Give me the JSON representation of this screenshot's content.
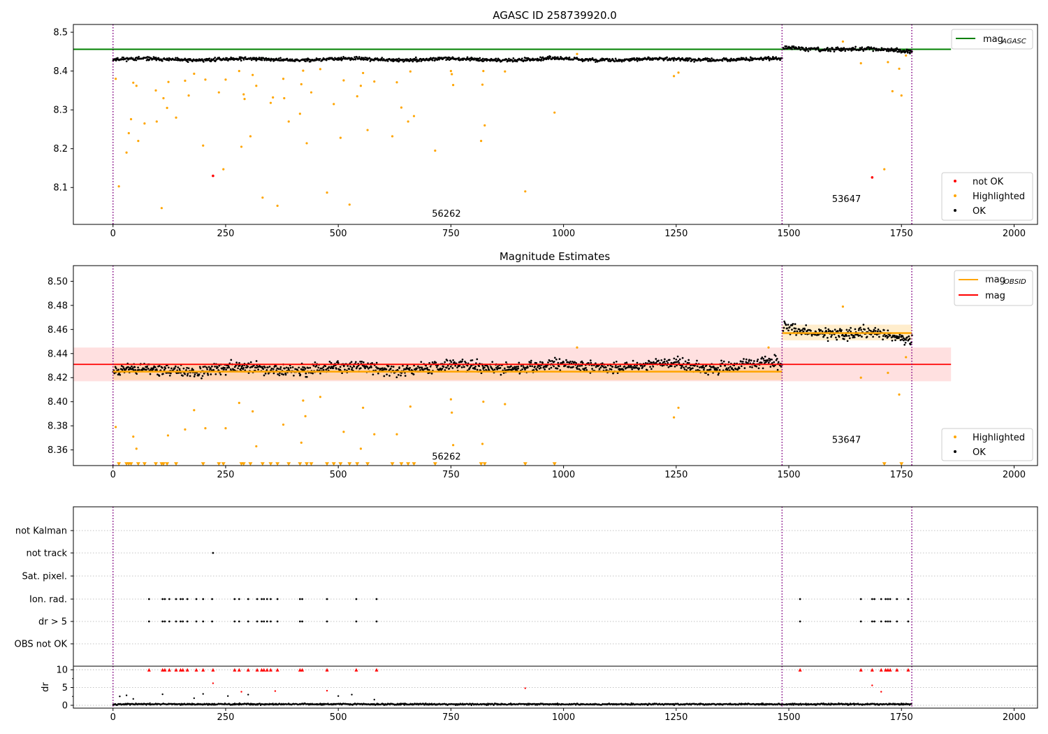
{
  "colors": {
    "ok": "#000000",
    "highlighted": "#FFA500",
    "not_ok": "#FF0000",
    "agasc": "#008000",
    "obsid": "#FFA500",
    "mag": "#FF0000",
    "obs_boundary": "#800080",
    "grid": "#b0b0b0"
  },
  "chart_data": [
    {
      "type": "scatter",
      "title": "AGASC ID 258739920.0",
      "xlim": [
        -88,
        2052
      ],
      "ylim": [
        8.005,
        8.52
      ],
      "x_ticks": [
        0,
        250,
        500,
        750,
        1000,
        1250,
        1500,
        1750,
        2000
      ],
      "x_tick_labels": [
        "0",
        "250",
        "500",
        "750",
        "1000",
        "1250",
        "1500",
        "1750",
        "2000"
      ],
      "y_ticks": [
        8.1,
        8.2,
        8.3,
        8.4,
        8.5
      ],
      "y_tick_labels": [
        "8.1",
        "8.2",
        "8.3",
        "8.4",
        "8.5"
      ],
      "obs_boundaries": [
        0,
        1485,
        1773
      ],
      "mag_agasc": 8.456,
      "mag_agasc_x_range": [
        -88,
        1860
      ],
      "obs_labels": [
        {
          "text": "56262",
          "x": 740,
          "y": 8.025
        },
        {
          "text": "53647",
          "x": 1628,
          "y": 8.063
        }
      ],
      "ok_segments": [
        {
          "x_range": [
            0,
            1485
          ],
          "level_start": 8.43,
          "level_end": 8.43,
          "spread": 0.006
        },
        {
          "x_range": [
            1488,
            1773
          ],
          "level_start": 8.46,
          "level_end": 8.452,
          "spread": 0.007
        }
      ],
      "series": [
        {
          "name": "not OK",
          "points": [
            [
              222,
              8.13
            ],
            [
              1685,
              8.126
            ]
          ]
        },
        {
          "name": "Highlighted",
          "points": [
            [
              6,
              8.38
            ],
            [
              13,
              8.103
            ],
            [
              30,
              8.19
            ],
            [
              35,
              8.24
            ],
            [
              40,
              8.276
            ],
            [
              45,
              8.37
            ],
            [
              52,
              8.362
            ],
            [
              56,
              8.22
            ],
            [
              70,
              8.265
            ],
            [
              95,
              8.35
            ],
            [
              97,
              8.27
            ],
            [
              108,
              8.047
            ],
            [
              112,
              8.33
            ],
            [
              120,
              8.305
            ],
            [
              123,
              8.372
            ],
            [
              140,
              8.28
            ],
            [
              160,
              8.375
            ],
            [
              168,
              8.337
            ],
            [
              180,
              8.393
            ],
            [
              200,
              8.208
            ],
            [
              205,
              8.378
            ],
            [
              235,
              8.345
            ],
            [
              245,
              8.147
            ],
            [
              250,
              8.378
            ],
            [
              280,
              8.4
            ],
            [
              285,
              8.205
            ],
            [
              290,
              8.34
            ],
            [
              292,
              8.328
            ],
            [
              305,
              8.232
            ],
            [
              310,
              8.39
            ],
            [
              318,
              8.362
            ],
            [
              332,
              8.074
            ],
            [
              350,
              8.318
            ],
            [
              355,
              8.332
            ],
            [
              365,
              8.053
            ],
            [
              378,
              8.38
            ],
            [
              380,
              8.33
            ],
            [
              390,
              8.27
            ],
            [
              415,
              8.29
            ],
            [
              418,
              8.366
            ],
            [
              422,
              8.401
            ],
            [
              430,
              8.214
            ],
            [
              440,
              8.345
            ],
            [
              460,
              8.405
            ],
            [
              475,
              8.087
            ],
            [
              490,
              8.315
            ],
            [
              505,
              8.228
            ],
            [
              512,
              8.376
            ],
            [
              525,
              8.056
            ],
            [
              542,
              8.335
            ],
            [
              550,
              8.362
            ],
            [
              555,
              8.395
            ],
            [
              565,
              8.248
            ],
            [
              580,
              8.373
            ],
            [
              620,
              8.232
            ],
            [
              630,
              8.371
            ],
            [
              640,
              8.306
            ],
            [
              655,
              8.27
            ],
            [
              660,
              8.399
            ],
            [
              668,
              8.284
            ],
            [
              715,
              8.195
            ],
            [
              750,
              8.4
            ],
            [
              752,
              8.392
            ],
            [
              755,
              8.364
            ],
            [
              817,
              8.22
            ],
            [
              820,
              8.365
            ],
            [
              822,
              8.4
            ],
            [
              825,
              8.26
            ],
            [
              870,
              8.399
            ],
            [
              915,
              8.09
            ],
            [
              980,
              8.293
            ],
            [
              1030,
              8.444
            ],
            [
              1245,
              8.387
            ],
            [
              1255,
              8.396
            ],
            [
              1620,
              8.476
            ],
            [
              1660,
              8.42
            ],
            [
              1712,
              8.147
            ],
            [
              1720,
              8.423
            ],
            [
              1730,
              8.348
            ],
            [
              1745,
              8.406
            ],
            [
              1750,
              8.337
            ],
            [
              1760,
              8.44
            ]
          ]
        }
      ],
      "legend_top": [
        {
          "label": "mag",
          "sub": "AGASC",
          "color": "#008000"
        }
      ],
      "legend_bottom": [
        {
          "label": "not OK",
          "color": "#FF0000"
        },
        {
          "label": "Highlighted",
          "color": "#FFA500"
        },
        {
          "label": "OK",
          "color": "#000000"
        }
      ]
    },
    {
      "type": "scatter",
      "title": "Magnitude Estimates",
      "xlim": [
        -88,
        2052
      ],
      "ylim": [
        8.347,
        8.513
      ],
      "x_ticks": [
        0,
        250,
        500,
        750,
        1000,
        1250,
        1500,
        1750,
        2000
      ],
      "x_tick_labels": [
        "0",
        "250",
        "500",
        "750",
        "1000",
        "1250",
        "1500",
        "1750",
        "2000"
      ],
      "y_ticks": [
        8.36,
        8.38,
        8.4,
        8.42,
        8.44,
        8.46,
        8.48,
        8.5
      ],
      "y_tick_labels": [
        "8.36",
        "8.38",
        "8.40",
        "8.42",
        "8.44",
        "8.46",
        "8.48",
        "8.50"
      ],
      "obs_boundaries": [
        0,
        1485,
        1773
      ],
      "mag": 8.431,
      "mag_band": [
        8.417,
        8.445
      ],
      "mag_x_range": [
        -88,
        1860
      ],
      "mag_obsid": [
        {
          "x_range": [
            0,
            1485
          ],
          "value": 8.425,
          "band": [
            8.418,
            8.432
          ]
        },
        {
          "x_range": [
            1485,
            1773
          ],
          "value": 8.457,
          "band": [
            8.451,
            8.464
          ]
        }
      ],
      "obs_labels": [
        {
          "text": "56262",
          "x": 740,
          "y": 8.352
        },
        {
          "text": "53647",
          "x": 1628,
          "y": 8.366
        }
      ],
      "ok_segments": [
        {
          "x_range": [
            0,
            1485
          ],
          "level_start": 8.426,
          "level_end": 8.431,
          "spread": 0.007
        },
        {
          "x_range": [
            1488,
            1773
          ],
          "level_start": 8.461,
          "level_end": 8.453,
          "spread": 0.007
        }
      ],
      "series": [
        {
          "name": "Highlighted",
          "points": [
            [
              6,
              8.379
            ],
            [
              45,
              8.371
            ],
            [
              52,
              8.361
            ],
            [
              122,
              8.372
            ],
            [
              160,
              8.377
            ],
            [
              180,
              8.393
            ],
            [
              205,
              8.378
            ],
            [
              250,
              8.378
            ],
            [
              280,
              8.399
            ],
            [
              310,
              8.392
            ],
            [
              318,
              8.363
            ],
            [
              378,
              8.381
            ],
            [
              418,
              8.366
            ],
            [
              422,
              8.401
            ],
            [
              427,
              8.388
            ],
            [
              460,
              8.404
            ],
            [
              512,
              8.375
            ],
            [
              550,
              8.361
            ],
            [
              555,
              8.395
            ],
            [
              580,
              8.373
            ],
            [
              630,
              8.373
            ],
            [
              660,
              8.396
            ],
            [
              750,
              8.402
            ],
            [
              752,
              8.391
            ],
            [
              755,
              8.364
            ],
            [
              820,
              8.365
            ],
            [
              822,
              8.4
            ],
            [
              870,
              8.398
            ],
            [
              1030,
              8.445
            ],
            [
              1245,
              8.387
            ],
            [
              1255,
              8.395
            ],
            [
              1455,
              8.445
            ],
            [
              1620,
              8.479
            ],
            [
              1660,
              8.42
            ],
            [
              1720,
              8.424
            ],
            [
              1745,
              8.406
            ],
            [
              1760,
              8.437
            ]
          ]
        },
        {
          "name": "Below range",
          "points": [
            [
              13,
              8.348
            ],
            [
              30,
              8.348
            ],
            [
              35,
              8.348
            ],
            [
              40,
              8.348
            ],
            [
              56,
              8.348
            ],
            [
              70,
              8.348
            ],
            [
              95,
              8.348
            ],
            [
              108,
              8.348
            ],
            [
              112,
              8.348
            ],
            [
              120,
              8.348
            ],
            [
              140,
              8.348
            ],
            [
              200,
              8.348
            ],
            [
              235,
              8.348
            ],
            [
              245,
              8.348
            ],
            [
              285,
              8.348
            ],
            [
              290,
              8.348
            ],
            [
              305,
              8.348
            ],
            [
              332,
              8.348
            ],
            [
              350,
              8.348
            ],
            [
              365,
              8.348
            ],
            [
              390,
              8.348
            ],
            [
              415,
              8.348
            ],
            [
              430,
              8.348
            ],
            [
              440,
              8.348
            ],
            [
              475,
              8.348
            ],
            [
              490,
              8.348
            ],
            [
              505,
              8.348
            ],
            [
              525,
              8.348
            ],
            [
              542,
              8.348
            ],
            [
              565,
              8.348
            ],
            [
              620,
              8.348
            ],
            [
              640,
              8.348
            ],
            [
              655,
              8.348
            ],
            [
              668,
              8.348
            ],
            [
              715,
              8.348
            ],
            [
              817,
              8.348
            ],
            [
              825,
              8.348
            ],
            [
              915,
              8.348
            ],
            [
              980,
              8.348
            ],
            [
              1712,
              8.348
            ],
            [
              1750,
              8.348
            ]
          ]
        }
      ],
      "legend_top": [
        {
          "label": "mag",
          "sub": "OBSID",
          "color": "#FFA500"
        },
        {
          "label": "mag",
          "sub": "",
          "color": "#FF0000"
        }
      ],
      "legend_bottom": [
        {
          "label": "Highlighted",
          "color": "#FFA500"
        },
        {
          "label": "OK",
          "color": "#000000"
        }
      ]
    },
    {
      "type": "scatter",
      "title": "",
      "xlim": [
        -88,
        2052
      ],
      "flag_rows": [
        "not Kalman",
        "not track",
        "Sat. pixel.",
        "Ion. rad.",
        "dr > 5",
        "OBS not OK"
      ],
      "flag_points": {
        "not track": [
          222
        ],
        "Ion. rad.": [
          80,
          110,
          115,
          125,
          140,
          150,
          155,
          165,
          185,
          200,
          220,
          270,
          280,
          300,
          320,
          330,
          335,
          342,
          350,
          365,
          415,
          420,
          475,
          540,
          585,
          1525,
          1660,
          1685,
          1690,
          1705,
          1715,
          1720,
          1725,
          1740,
          1765
        ],
        "dr > 5": [
          80,
          110,
          115,
          125,
          140,
          150,
          155,
          165,
          185,
          200,
          220,
          270,
          280,
          300,
          320,
          330,
          335,
          342,
          350,
          365,
          415,
          420,
          475,
          540,
          585,
          1525,
          1660,
          1685,
          1690,
          1705,
          1715,
          1720,
          1725,
          1740,
          1765
        ]
      },
      "dr_ylabel": "dr",
      "dr_ylim": [
        -0.8,
        11
      ],
      "dr_y_ticks": [
        0,
        5,
        10
      ],
      "dr_y_tick_labels": [
        "0",
        "5",
        "10"
      ],
      "x_ticks": [
        0,
        250,
        500,
        750,
        1000,
        1250,
        1500,
        1750,
        2000
      ],
      "x_tick_labels": [
        "0",
        "250",
        "500",
        "750",
        "1000",
        "1250",
        "1500",
        "1750",
        "2000"
      ],
      "obs_boundaries": [
        0,
        1485,
        1773
      ],
      "dr_capped": [
        80,
        110,
        115,
        125,
        140,
        150,
        155,
        165,
        185,
        200,
        222,
        270,
        280,
        300,
        320,
        330,
        335,
        342,
        350,
        365,
        415,
        420,
        475,
        540,
        585,
        1525,
        1660,
        1685,
        1705,
        1715,
        1720,
        1725,
        1740,
        1765
      ],
      "dr_outliers": [
        [
          15,
          2.5
        ],
        [
          30,
          2.8
        ],
        [
          45,
          1.8
        ],
        [
          110,
          3.1
        ],
        [
          180,
          2.0
        ],
        [
          200,
          3.2
        ],
        [
          222,
          6.2
        ],
        [
          255,
          2.6
        ],
        [
          285,
          3.8
        ],
        [
          300,
          3.0
        ],
        [
          360,
          4.0
        ],
        [
          475,
          4.1
        ],
        [
          500,
          2.6
        ],
        [
          530,
          3.0
        ],
        [
          580,
          1.6
        ],
        [
          915,
          4.8
        ],
        [
          1685,
          5.6
        ],
        [
          1705,
          3.8
        ]
      ],
      "dr_baseline": {
        "x_range": [
          0,
          1773
        ],
        "level": 0.3,
        "spread": 0.3
      }
    }
  ]
}
